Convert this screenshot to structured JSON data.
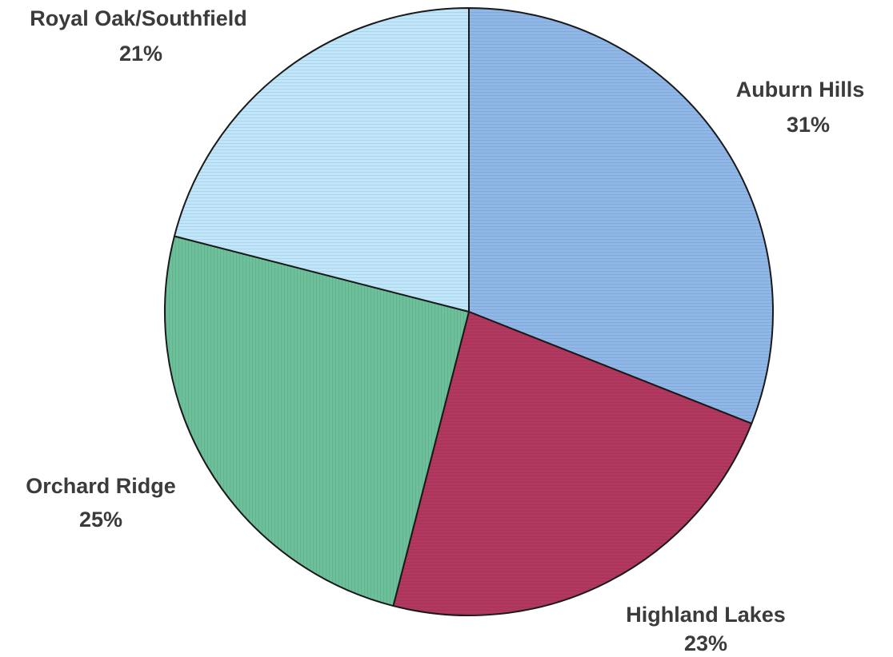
{
  "chart_data": {
    "type": "pie",
    "title": "",
    "start_angle_deg": 0,
    "direction": "clockwise",
    "slices": [
      {
        "label": "Auburn Hills",
        "value": 31,
        "value_label": "31%",
        "color": "#8fb7e8"
      },
      {
        "label": "Highland Lakes",
        "value": 23,
        "value_label": "23%",
        "color": "#b2385f"
      },
      {
        "label": "Orchard Ridge",
        "value": 25,
        "value_label": "25%",
        "color": "#6cc19a"
      },
      {
        "label": "Royal Oak/Southfield",
        "value": 21,
        "value_label": "21%",
        "color": "#bfe6fb"
      }
    ],
    "outline_color": "#1a1a1a"
  }
}
